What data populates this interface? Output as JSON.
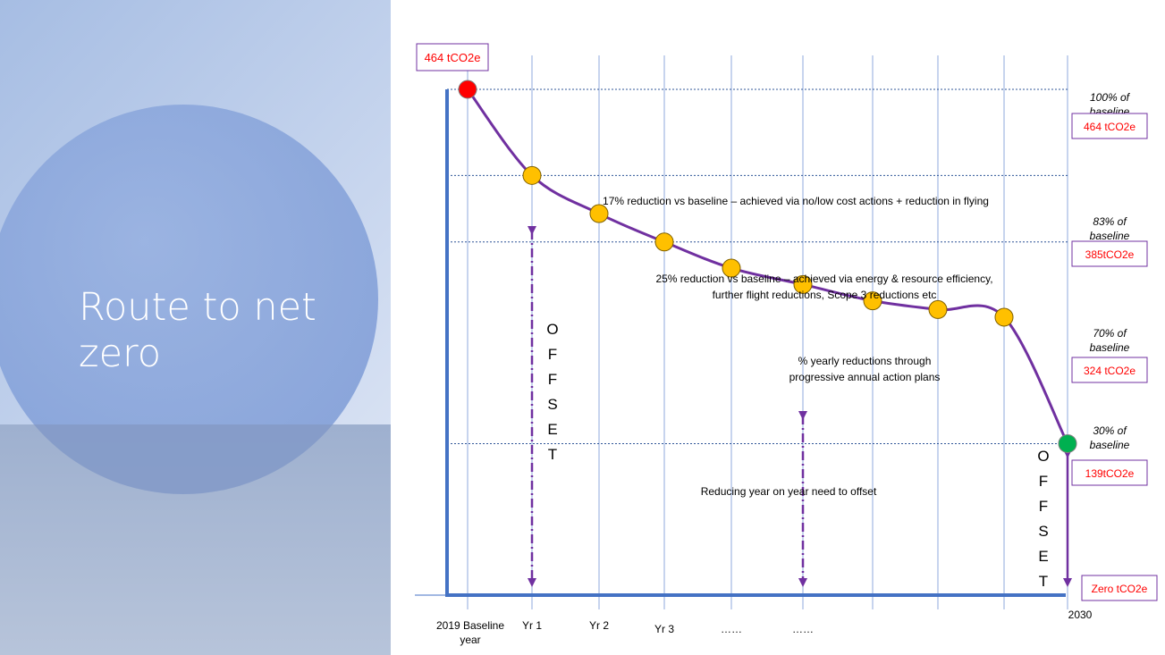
{
  "slide": {
    "title_line1": "Route to net",
    "title_line2": "zero"
  },
  "colors": {
    "curve": "#7030a0",
    "axis": "#4472c4",
    "label_red": "#ff0000",
    "box_border": "#7030a0",
    "point_fill": "#ffc000",
    "start_point": "#ff0000",
    "end_point": "#00b050"
  },
  "chart_data": {
    "type": "line",
    "categories": [
      "2019 Baseline year",
      "Yr 1",
      "Yr 2",
      "Yr 3",
      "……",
      "……",
      "",
      "",
      "",
      "2030"
    ],
    "values": [
      464,
      385,
      350,
      324,
      300,
      285,
      270,
      262,
      255,
      139
    ],
    "ylabel": "tCO2e",
    "ylim": [
      0,
      464
    ],
    "grid": true,
    "top_value_label": "464 tCO2e",
    "levels": [
      {
        "percent_label": "100% of baseline",
        "value_label": "464 tCO2e"
      },
      {
        "percent_label": "83% of baseline",
        "value_label": "385tCO2e"
      },
      {
        "percent_label": "70% of baseline",
        "value_label": "324 tCO2e"
      },
      {
        "percent_label": "30% of baseline",
        "value_label": "139tCO2e"
      },
      {
        "percent_label": "",
        "value_label": "Zero tCO2e"
      }
    ],
    "annotations": {
      "reduction_17": "17% reduction vs baseline – achieved via no/low cost actions + reduction in flying",
      "reduction_25_line1": "25% reduction vs baseline – achieved via energy & resource efficiency,",
      "reduction_25_line2": "further flight reductions, Scope 3 reductions etc",
      "yearly_line1": "% yearly reductions through",
      "yearly_line2": "progressive annual action plans",
      "offset_need": "Reducing year on year need to offset",
      "offset_letters": [
        "O",
        "F",
        "F",
        "S",
        "E",
        "T"
      ]
    }
  }
}
